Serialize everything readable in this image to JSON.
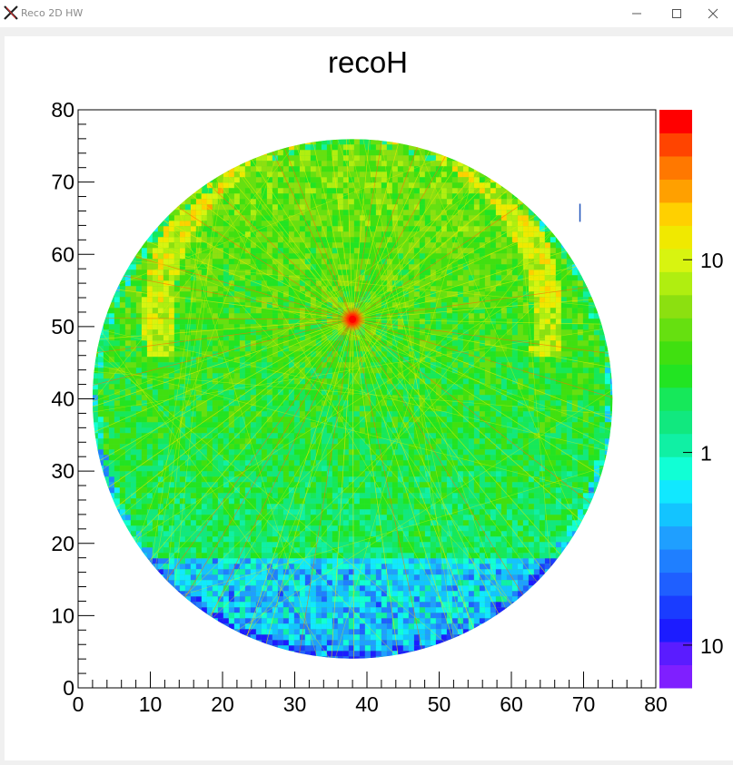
{
  "window": {
    "title": "Reco 2D HW",
    "minimize_icon": "minimize-icon",
    "maximize_icon": "maximize-icon",
    "close_icon": "close-icon"
  },
  "chart_data": {
    "type": "heatmap",
    "title": "recoH",
    "xlabel": "",
    "ylabel": "",
    "xlim": [
      0,
      80
    ],
    "ylim": [
      0,
      80
    ],
    "x_ticks": [
      "0",
      "10",
      "20",
      "30",
      "40",
      "50",
      "60",
      "70",
      "80"
    ],
    "y_ticks": [
      "0",
      "10",
      "20",
      "30",
      "40",
      "50",
      "60",
      "70",
      "80"
    ],
    "z_scale": "log",
    "z_ticks": [
      "10",
      "1",
      "10"
    ],
    "z_range": [
      0.06,
      60
    ],
    "palette": [
      "#7f1fff",
      "#5a1cff",
      "#1c1cff",
      "#1a3cff",
      "#1f5fff",
      "#1f7fff",
      "#1f9fff",
      "#13c4ff",
      "#11e8ff",
      "#11ffd5",
      "#10f0a4",
      "#11e87f",
      "#16e85a",
      "#22e422",
      "#40e010",
      "#66e010",
      "#8ce010",
      "#b0ee10",
      "#d8f410",
      "#f0e900",
      "#ffd000",
      "#ffa000",
      "#ff7800",
      "#ff4400",
      "#ff0000"
    ],
    "description_features": {
      "circle_center": [
        38,
        40
      ],
      "circle_radius": 36,
      "hotspot": [
        38,
        51
      ],
      "arc_radius": [
        25,
        29
      ]
    }
  }
}
